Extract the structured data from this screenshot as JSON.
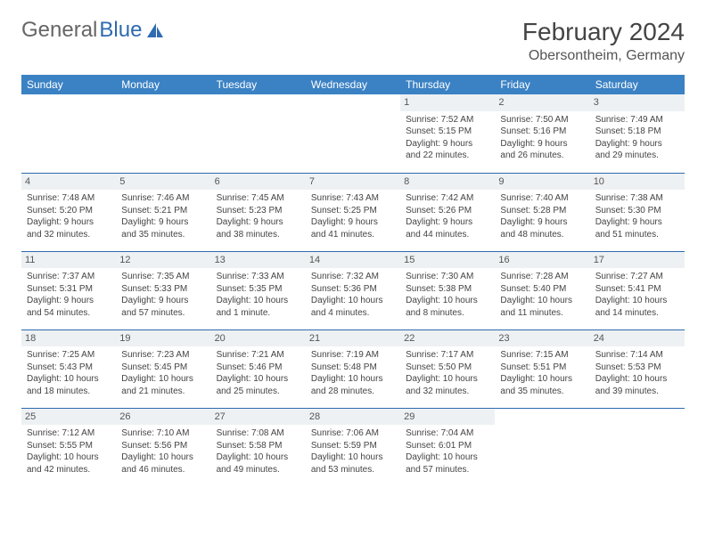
{
  "logo": {
    "text1": "General",
    "text2": "Blue"
  },
  "title": "February 2024",
  "location": "Obersontheim, Germany",
  "colors": {
    "header_bg": "#3b82c4",
    "header_text": "#ffffff",
    "border": "#2e6bb0",
    "daynum_bg": "#eef1f3",
    "logo_gray": "#666666",
    "logo_blue": "#2e6bb0"
  },
  "weekdays": [
    "Sunday",
    "Monday",
    "Tuesday",
    "Wednesday",
    "Thursday",
    "Friday",
    "Saturday"
  ],
  "weeks": [
    [
      {
        "blank": true
      },
      {
        "blank": true
      },
      {
        "blank": true
      },
      {
        "blank": true
      },
      {
        "n": "1",
        "sr": "Sunrise: 7:52 AM",
        "ss": "Sunset: 5:15 PM",
        "d1": "Daylight: 9 hours",
        "d2": "and 22 minutes."
      },
      {
        "n": "2",
        "sr": "Sunrise: 7:50 AM",
        "ss": "Sunset: 5:16 PM",
        "d1": "Daylight: 9 hours",
        "d2": "and 26 minutes."
      },
      {
        "n": "3",
        "sr": "Sunrise: 7:49 AM",
        "ss": "Sunset: 5:18 PM",
        "d1": "Daylight: 9 hours",
        "d2": "and 29 minutes."
      }
    ],
    [
      {
        "n": "4",
        "sr": "Sunrise: 7:48 AM",
        "ss": "Sunset: 5:20 PM",
        "d1": "Daylight: 9 hours",
        "d2": "and 32 minutes."
      },
      {
        "n": "5",
        "sr": "Sunrise: 7:46 AM",
        "ss": "Sunset: 5:21 PM",
        "d1": "Daylight: 9 hours",
        "d2": "and 35 minutes."
      },
      {
        "n": "6",
        "sr": "Sunrise: 7:45 AM",
        "ss": "Sunset: 5:23 PM",
        "d1": "Daylight: 9 hours",
        "d2": "and 38 minutes."
      },
      {
        "n": "7",
        "sr": "Sunrise: 7:43 AM",
        "ss": "Sunset: 5:25 PM",
        "d1": "Daylight: 9 hours",
        "d2": "and 41 minutes."
      },
      {
        "n": "8",
        "sr": "Sunrise: 7:42 AM",
        "ss": "Sunset: 5:26 PM",
        "d1": "Daylight: 9 hours",
        "d2": "and 44 minutes."
      },
      {
        "n": "9",
        "sr": "Sunrise: 7:40 AM",
        "ss": "Sunset: 5:28 PM",
        "d1": "Daylight: 9 hours",
        "d2": "and 48 minutes."
      },
      {
        "n": "10",
        "sr": "Sunrise: 7:38 AM",
        "ss": "Sunset: 5:30 PM",
        "d1": "Daylight: 9 hours",
        "d2": "and 51 minutes."
      }
    ],
    [
      {
        "n": "11",
        "sr": "Sunrise: 7:37 AM",
        "ss": "Sunset: 5:31 PM",
        "d1": "Daylight: 9 hours",
        "d2": "and 54 minutes."
      },
      {
        "n": "12",
        "sr": "Sunrise: 7:35 AM",
        "ss": "Sunset: 5:33 PM",
        "d1": "Daylight: 9 hours",
        "d2": "and 57 minutes."
      },
      {
        "n": "13",
        "sr": "Sunrise: 7:33 AM",
        "ss": "Sunset: 5:35 PM",
        "d1": "Daylight: 10 hours",
        "d2": "and 1 minute."
      },
      {
        "n": "14",
        "sr": "Sunrise: 7:32 AM",
        "ss": "Sunset: 5:36 PM",
        "d1": "Daylight: 10 hours",
        "d2": "and 4 minutes."
      },
      {
        "n": "15",
        "sr": "Sunrise: 7:30 AM",
        "ss": "Sunset: 5:38 PM",
        "d1": "Daylight: 10 hours",
        "d2": "and 8 minutes."
      },
      {
        "n": "16",
        "sr": "Sunrise: 7:28 AM",
        "ss": "Sunset: 5:40 PM",
        "d1": "Daylight: 10 hours",
        "d2": "and 11 minutes."
      },
      {
        "n": "17",
        "sr": "Sunrise: 7:27 AM",
        "ss": "Sunset: 5:41 PM",
        "d1": "Daylight: 10 hours",
        "d2": "and 14 minutes."
      }
    ],
    [
      {
        "n": "18",
        "sr": "Sunrise: 7:25 AM",
        "ss": "Sunset: 5:43 PM",
        "d1": "Daylight: 10 hours",
        "d2": "and 18 minutes."
      },
      {
        "n": "19",
        "sr": "Sunrise: 7:23 AM",
        "ss": "Sunset: 5:45 PM",
        "d1": "Daylight: 10 hours",
        "d2": "and 21 minutes."
      },
      {
        "n": "20",
        "sr": "Sunrise: 7:21 AM",
        "ss": "Sunset: 5:46 PM",
        "d1": "Daylight: 10 hours",
        "d2": "and 25 minutes."
      },
      {
        "n": "21",
        "sr": "Sunrise: 7:19 AM",
        "ss": "Sunset: 5:48 PM",
        "d1": "Daylight: 10 hours",
        "d2": "and 28 minutes."
      },
      {
        "n": "22",
        "sr": "Sunrise: 7:17 AM",
        "ss": "Sunset: 5:50 PM",
        "d1": "Daylight: 10 hours",
        "d2": "and 32 minutes."
      },
      {
        "n": "23",
        "sr": "Sunrise: 7:15 AM",
        "ss": "Sunset: 5:51 PM",
        "d1": "Daylight: 10 hours",
        "d2": "and 35 minutes."
      },
      {
        "n": "24",
        "sr": "Sunrise: 7:14 AM",
        "ss": "Sunset: 5:53 PM",
        "d1": "Daylight: 10 hours",
        "d2": "and 39 minutes."
      }
    ],
    [
      {
        "n": "25",
        "sr": "Sunrise: 7:12 AM",
        "ss": "Sunset: 5:55 PM",
        "d1": "Daylight: 10 hours",
        "d2": "and 42 minutes."
      },
      {
        "n": "26",
        "sr": "Sunrise: 7:10 AM",
        "ss": "Sunset: 5:56 PM",
        "d1": "Daylight: 10 hours",
        "d2": "and 46 minutes."
      },
      {
        "n": "27",
        "sr": "Sunrise: 7:08 AM",
        "ss": "Sunset: 5:58 PM",
        "d1": "Daylight: 10 hours",
        "d2": "and 49 minutes."
      },
      {
        "n": "28",
        "sr": "Sunrise: 7:06 AM",
        "ss": "Sunset: 5:59 PM",
        "d1": "Daylight: 10 hours",
        "d2": "and 53 minutes."
      },
      {
        "n": "29",
        "sr": "Sunrise: 7:04 AM",
        "ss": "Sunset: 6:01 PM",
        "d1": "Daylight: 10 hours",
        "d2": "and 57 minutes."
      },
      {
        "blank": true
      },
      {
        "blank": true
      }
    ]
  ]
}
